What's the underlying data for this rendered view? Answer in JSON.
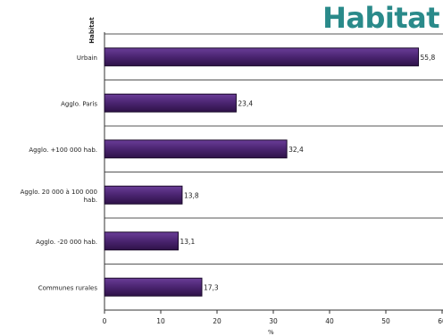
{
  "brand": {
    "label": "Habitat",
    "color": "#2a8a8a"
  },
  "chart_data": {
    "type": "bar",
    "orientation": "horizontal",
    "title": "",
    "ylabel": "Habitat",
    "xlabel": "%",
    "xlim": [
      0,
      60
    ],
    "xticks": [
      "0",
      "10",
      "20",
      "30",
      "40",
      "50",
      "60"
    ],
    "grid": "horizontal lines between categories",
    "bar_color": "#4a2470",
    "categories": [
      "Urbain",
      "Agglo. Paris",
      "Agglo. +100 000 hab.",
      "Agglo. 20 000 à 100 000 hab.",
      "Agglo. -20 000 hab.",
      "Communes rurales"
    ],
    "category_lines": [
      [
        "Urbain"
      ],
      [
        "Agglo. Paris"
      ],
      [
        "Agglo. +100 000 hab."
      ],
      [
        "Agglo. 20 000 à 100 000",
        "hab."
      ],
      [
        "Agglo. -20 000 hab."
      ],
      [
        "Communes rurales"
      ]
    ],
    "values": [
      55.8,
      23.4,
      32.4,
      13.8,
      13.1,
      17.3
    ],
    "value_labels": [
      "55,8",
      "23,4",
      "32,4",
      "13,8",
      "13,1",
      "17,3"
    ]
  }
}
